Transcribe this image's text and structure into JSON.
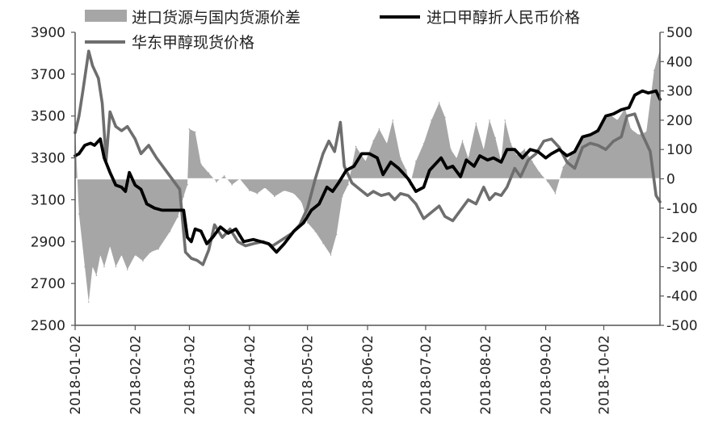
{
  "chart_data": {
    "type": "line",
    "title": "",
    "xlabel": "",
    "ylabel": "",
    "y2label": "",
    "x_range": [
      "2018-01-02",
      "2018-10-31"
    ],
    "ylim": [
      2500,
      3900
    ],
    "y_ticks": [
      "3900",
      "3700",
      "3500",
      "3300",
      "3100",
      "2900",
      "2700",
      "2500"
    ],
    "y2lim": [
      -500,
      500
    ],
    "y2_ticks": [
      "500",
      "400",
      "300",
      "200",
      "100",
      "0",
      "-100",
      "-200",
      "-300",
      "-400",
      "-500"
    ],
    "x_tick_labels": [
      "2018-01-02",
      "2018-02-02",
      "2018-03-02",
      "2018-04-02",
      "2018-05-02",
      "2018-06-02",
      "2018-07-02",
      "2018-08-02",
      "2018-09-02",
      "2018-10-02"
    ],
    "grid": false,
    "legend_position": "top",
    "series": [
      {
        "name": "进口货源与国内货源价差",
        "type": "area",
        "axis": "right",
        "color": "#a6a6a6",
        "points": [
          [
            "2018-01-02",
            170
          ],
          [
            "2018-01-04",
            -120
          ],
          [
            "2018-01-07",
            -300
          ],
          [
            "2018-01-09",
            -420
          ],
          [
            "2018-01-11",
            -300
          ],
          [
            "2018-01-13",
            -330
          ],
          [
            "2018-01-15",
            -260
          ],
          [
            "2018-01-17",
            -300
          ],
          [
            "2018-01-20",
            -230
          ],
          [
            "2018-01-23",
            -300
          ],
          [
            "2018-01-26",
            -260
          ],
          [
            "2018-01-29",
            -310
          ],
          [
            "2018-02-02",
            -260
          ],
          [
            "2018-02-06",
            -280
          ],
          [
            "2018-02-10",
            -250
          ],
          [
            "2018-02-14",
            -240
          ],
          [
            "2018-02-20",
            -180
          ],
          [
            "2018-02-24",
            -130
          ],
          [
            "2018-02-27",
            -60
          ],
          [
            "2018-03-01",
            -20
          ],
          [
            "2018-03-02",
            170
          ],
          [
            "2018-03-05",
            160
          ],
          [
            "2018-03-08",
            50
          ],
          [
            "2018-03-12",
            20
          ],
          [
            "2018-03-16",
            -10
          ],
          [
            "2018-03-20",
            10
          ],
          [
            "2018-03-24",
            -20
          ],
          [
            "2018-03-28",
            0
          ],
          [
            "2018-04-02",
            -40
          ],
          [
            "2018-04-06",
            -50
          ],
          [
            "2018-04-10",
            -30
          ],
          [
            "2018-04-15",
            -60
          ],
          [
            "2018-04-20",
            -40
          ],
          [
            "2018-04-25",
            -50
          ],
          [
            "2018-04-29",
            -80
          ],
          [
            "2018-05-02",
            -150
          ],
          [
            "2018-05-06",
            -180
          ],
          [
            "2018-05-10",
            -220
          ],
          [
            "2018-05-14",
            -260
          ],
          [
            "2018-05-17",
            -190
          ],
          [
            "2018-05-20",
            -60
          ],
          [
            "2018-05-23",
            -20
          ],
          [
            "2018-05-27",
            110
          ],
          [
            "2018-06-01",
            60
          ],
          [
            "2018-06-05",
            130
          ],
          [
            "2018-06-08",
            170
          ],
          [
            "2018-06-12",
            120
          ],
          [
            "2018-06-15",
            200
          ],
          [
            "2018-06-19",
            70
          ],
          [
            "2018-06-22",
            30
          ],
          [
            "2018-06-24",
            -20
          ],
          [
            "2018-06-27",
            60
          ],
          [
            "2018-07-01",
            120
          ],
          [
            "2018-07-05",
            200
          ],
          [
            "2018-07-09",
            260
          ],
          [
            "2018-07-12",
            210
          ],
          [
            "2018-07-15",
            100
          ],
          [
            "2018-07-18",
            70
          ],
          [
            "2018-07-21",
            130
          ],
          [
            "2018-07-24",
            70
          ],
          [
            "2018-07-28",
            190
          ],
          [
            "2018-08-01",
            100
          ],
          [
            "2018-08-04",
            200
          ],
          [
            "2018-08-07",
            140
          ],
          [
            "2018-08-10",
            60
          ],
          [
            "2018-08-12",
            200
          ],
          [
            "2018-08-15",
            120
          ],
          [
            "2018-08-18",
            80
          ],
          [
            "2018-08-22",
            100
          ],
          [
            "2018-08-26",
            60
          ],
          [
            "2018-08-30",
            20
          ],
          [
            "2018-09-03",
            -10
          ],
          [
            "2018-09-07",
            -50
          ],
          [
            "2018-09-11",
            40
          ],
          [
            "2018-09-15",
            80
          ],
          [
            "2018-09-19",
            120
          ],
          [
            "2018-09-23",
            150
          ],
          [
            "2018-09-27",
            160
          ],
          [
            "2018-10-01",
            190
          ],
          [
            "2018-10-05",
            220
          ],
          [
            "2018-10-09",
            200
          ],
          [
            "2018-10-13",
            240
          ],
          [
            "2018-10-16",
            170
          ],
          [
            "2018-10-20",
            150
          ],
          [
            "2018-10-24",
            160
          ],
          [
            "2018-10-28",
            370
          ],
          [
            "2018-10-31",
            440
          ]
        ]
      },
      {
        "name": "进口甲醇折人民币价格",
        "type": "line",
        "axis": "left",
        "color": "#000000",
        "points": [
          [
            "2018-01-02",
            3310
          ],
          [
            "2018-01-04",
            3320
          ],
          [
            "2018-01-07",
            3360
          ],
          [
            "2018-01-10",
            3370
          ],
          [
            "2018-01-12",
            3360
          ],
          [
            "2018-01-15",
            3390
          ],
          [
            "2018-01-17",
            3300
          ],
          [
            "2018-01-20",
            3230
          ],
          [
            "2018-01-23",
            3170
          ],
          [
            "2018-01-26",
            3160
          ],
          [
            "2018-01-28",
            3140
          ],
          [
            "2018-01-30",
            3230
          ],
          [
            "2018-02-02",
            3170
          ],
          [
            "2018-02-05",
            3150
          ],
          [
            "2018-02-08",
            3080
          ],
          [
            "2018-02-12",
            3060
          ],
          [
            "2018-02-16",
            3050
          ],
          [
            "2018-02-20",
            3050
          ],
          [
            "2018-02-24",
            3050
          ],
          [
            "2018-02-27",
            3050
          ],
          [
            "2018-03-01",
            2920
          ],
          [
            "2018-03-03",
            2900
          ],
          [
            "2018-03-05",
            2960
          ],
          [
            "2018-03-08",
            2950
          ],
          [
            "2018-03-11",
            2890
          ],
          [
            "2018-03-14",
            2920
          ],
          [
            "2018-03-18",
            2970
          ],
          [
            "2018-03-22",
            2940
          ],
          [
            "2018-03-26",
            2960
          ],
          [
            "2018-03-30",
            2900
          ],
          [
            "2018-04-04",
            2910
          ],
          [
            "2018-04-08",
            2900
          ],
          [
            "2018-04-12",
            2890
          ],
          [
            "2018-04-16",
            2850
          ],
          [
            "2018-04-20",
            2890
          ],
          [
            "2018-04-25",
            2950
          ],
          [
            "2018-04-30",
            2990
          ],
          [
            "2018-05-04",
            3050
          ],
          [
            "2018-05-08",
            3080
          ],
          [
            "2018-05-12",
            3160
          ],
          [
            "2018-05-15",
            3140
          ],
          [
            "2018-05-18",
            3180
          ],
          [
            "2018-05-22",
            3240
          ],
          [
            "2018-05-26",
            3260
          ],
          [
            "2018-05-30",
            3320
          ],
          [
            "2018-06-03",
            3320
          ],
          [
            "2018-06-07",
            3300
          ],
          [
            "2018-06-10",
            3220
          ],
          [
            "2018-06-14",
            3280
          ],
          [
            "2018-06-18",
            3250
          ],
          [
            "2018-06-20",
            3230
          ],
          [
            "2018-06-23",
            3200
          ],
          [
            "2018-06-27",
            3140
          ],
          [
            "2018-07-01",
            3160
          ],
          [
            "2018-07-04",
            3240
          ],
          [
            "2018-07-07",
            3270
          ],
          [
            "2018-07-10",
            3300
          ],
          [
            "2018-07-13",
            3250
          ],
          [
            "2018-07-16",
            3260
          ],
          [
            "2018-07-20",
            3210
          ],
          [
            "2018-07-23",
            3290
          ],
          [
            "2018-07-27",
            3260
          ],
          [
            "2018-07-30",
            3310
          ],
          [
            "2018-08-03",
            3290
          ],
          [
            "2018-08-06",
            3300
          ],
          [
            "2018-08-10",
            3280
          ],
          [
            "2018-08-13",
            3340
          ],
          [
            "2018-08-17",
            3340
          ],
          [
            "2018-08-21",
            3300
          ],
          [
            "2018-08-25",
            3340
          ],
          [
            "2018-08-29",
            3330
          ],
          [
            "2018-09-02",
            3300
          ],
          [
            "2018-09-05",
            3320
          ],
          [
            "2018-09-09",
            3340
          ],
          [
            "2018-09-13",
            3310
          ],
          [
            "2018-09-17",
            3330
          ],
          [
            "2018-09-21",
            3400
          ],
          [
            "2018-09-25",
            3410
          ],
          [
            "2018-09-29",
            3430
          ],
          [
            "2018-10-03",
            3500
          ],
          [
            "2018-10-07",
            3510
          ],
          [
            "2018-10-11",
            3530
          ],
          [
            "2018-10-15",
            3540
          ],
          [
            "2018-10-18",
            3600
          ],
          [
            "2018-10-22",
            3620
          ],
          [
            "2018-10-25",
            3610
          ],
          [
            "2018-10-29",
            3620
          ],
          [
            "2018-10-31",
            3580
          ]
        ]
      },
      {
        "name": "华东甲醇现货价格",
        "type": "line",
        "axis": "left",
        "color": "#6e6e6e",
        "points": [
          [
            "2018-01-02",
            3420
          ],
          [
            "2018-01-04",
            3500
          ],
          [
            "2018-01-06",
            3620
          ],
          [
            "2018-01-09",
            3810
          ],
          [
            "2018-01-11",
            3740
          ],
          [
            "2018-01-14",
            3680
          ],
          [
            "2018-01-16",
            3560
          ],
          [
            "2018-01-18",
            3290
          ],
          [
            "2018-01-20",
            3520
          ],
          [
            "2018-01-23",
            3450
          ],
          [
            "2018-01-26",
            3430
          ],
          [
            "2018-01-29",
            3450
          ],
          [
            "2018-02-02",
            3390
          ],
          [
            "2018-02-05",
            3320
          ],
          [
            "2018-02-09",
            3360
          ],
          [
            "2018-02-13",
            3300
          ],
          [
            "2018-02-17",
            3250
          ],
          [
            "2018-02-21",
            3200
          ],
          [
            "2018-02-25",
            3150
          ],
          [
            "2018-02-28",
            2850
          ],
          [
            "2018-03-03",
            2820
          ],
          [
            "2018-03-06",
            2810
          ],
          [
            "2018-03-09",
            2790
          ],
          [
            "2018-03-12",
            2860
          ],
          [
            "2018-03-15",
            2980
          ],
          [
            "2018-03-19",
            2920
          ],
          [
            "2018-03-23",
            2960
          ],
          [
            "2018-03-27",
            2900
          ],
          [
            "2018-03-31",
            2880
          ],
          [
            "2018-04-04",
            2890
          ],
          [
            "2018-04-09",
            2900
          ],
          [
            "2018-04-14",
            2880
          ],
          [
            "2018-04-19",
            2910
          ],
          [
            "2018-04-24",
            2940
          ],
          [
            "2018-04-28",
            2980
          ],
          [
            "2018-05-02",
            3060
          ],
          [
            "2018-05-06",
            3200
          ],
          [
            "2018-05-10",
            3320
          ],
          [
            "2018-05-13",
            3380
          ],
          [
            "2018-05-16",
            3330
          ],
          [
            "2018-05-19",
            3470
          ],
          [
            "2018-05-21",
            3260
          ],
          [
            "2018-05-25",
            3180
          ],
          [
            "2018-05-29",
            3150
          ],
          [
            "2018-06-02",
            3120
          ],
          [
            "2018-06-05",
            3140
          ],
          [
            "2018-06-09",
            3120
          ],
          [
            "2018-06-13",
            3130
          ],
          [
            "2018-06-16",
            3100
          ],
          [
            "2018-06-19",
            3130
          ],
          [
            "2018-06-23",
            3120
          ],
          [
            "2018-06-27",
            3080
          ],
          [
            "2018-07-01",
            3010
          ],
          [
            "2018-07-05",
            3040
          ],
          [
            "2018-07-09",
            3070
          ],
          [
            "2018-07-12",
            3020
          ],
          [
            "2018-07-16",
            3000
          ],
          [
            "2018-07-20",
            3050
          ],
          [
            "2018-07-24",
            3100
          ],
          [
            "2018-07-28",
            3080
          ],
          [
            "2018-08-01",
            3160
          ],
          [
            "2018-08-04",
            3100
          ],
          [
            "2018-08-07",
            3130
          ],
          [
            "2018-08-10",
            3120
          ],
          [
            "2018-08-13",
            3160
          ],
          [
            "2018-08-17",
            3250
          ],
          [
            "2018-08-20",
            3210
          ],
          [
            "2018-08-24",
            3290
          ],
          [
            "2018-08-28",
            3320
          ],
          [
            "2018-09-01",
            3380
          ],
          [
            "2018-09-05",
            3390
          ],
          [
            "2018-09-09",
            3350
          ],
          [
            "2018-09-13",
            3280
          ],
          [
            "2018-09-17",
            3250
          ],
          [
            "2018-09-21",
            3350
          ],
          [
            "2018-09-25",
            3370
          ],
          [
            "2018-09-29",
            3360
          ],
          [
            "2018-10-03",
            3340
          ],
          [
            "2018-10-07",
            3380
          ],
          [
            "2018-10-11",
            3400
          ],
          [
            "2018-10-14",
            3500
          ],
          [
            "2018-10-18",
            3510
          ],
          [
            "2018-10-22",
            3410
          ],
          [
            "2018-10-26",
            3330
          ],
          [
            "2018-10-29",
            3120
          ],
          [
            "2018-10-31",
            3090
          ]
        ]
      }
    ]
  }
}
